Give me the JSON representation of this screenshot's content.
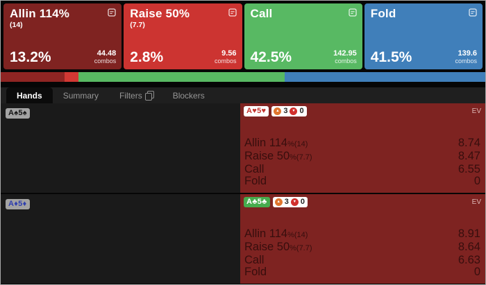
{
  "actions": [
    {
      "title": "Allin 114%",
      "subtitle": "(14)",
      "frequency": "13.2%",
      "combos": "44.48",
      "combos_label": "combos",
      "color": "#7f2321"
    },
    {
      "title": "Raise 50%",
      "subtitle": "(7.7)",
      "frequency": "2.8%",
      "combos": "9.56",
      "combos_label": "combos",
      "color": "#cc3431"
    },
    {
      "title": "Call",
      "subtitle": "",
      "frequency": "42.5%",
      "combos": "142.95",
      "combos_label": "combos",
      "color": "#58b963"
    },
    {
      "title": "Fold",
      "subtitle": "",
      "frequency": "41.5%",
      "combos": "139.6",
      "combos_label": "combos",
      "color": "#407fba"
    }
  ],
  "strategy_strip": {
    "segments": [
      {
        "action": "Allin 114%",
        "pct": 13.2,
        "color": "#8f2523"
      },
      {
        "action": "Raise 50%",
        "pct": 2.8,
        "color": "#d23833"
      },
      {
        "action": "Call",
        "pct": 42.5,
        "color": "#58b963"
      },
      {
        "action": "Fold",
        "pct": 41.5,
        "color": "#407fba"
      }
    ]
  },
  "tabs": [
    {
      "label": "Hands",
      "active": true
    },
    {
      "label": "Summary",
      "active": false
    },
    {
      "label": "Filters",
      "active": false,
      "icon": "copy-icon"
    },
    {
      "label": "Blockers",
      "active": false
    }
  ],
  "rows": [
    {
      "hand": "A♠5♠",
      "combo": "A♥5♥",
      "up_count": "3",
      "down_count": "0",
      "ev_header": "EV",
      "evs": [
        {
          "name": "Allin 114",
          "suffix": "%",
          "note": "(14)",
          "value": "8.74"
        },
        {
          "name": "Raise 50",
          "suffix": "%",
          "note": "(7.7)",
          "value": "8.47"
        },
        {
          "name": "Call",
          "suffix": "",
          "note": "",
          "value": "6.55"
        },
        {
          "name": "Fold",
          "suffix": "",
          "note": "",
          "value": "0"
        }
      ]
    },
    {
      "hand": "A♦5♦",
      "combo": "A♣5♣",
      "up_count": "3",
      "down_count": "0",
      "ev_header": "EV",
      "evs": [
        {
          "name": "Allin 114",
          "suffix": "%",
          "note": "(14)",
          "value": "8.91"
        },
        {
          "name": "Raise 50",
          "suffix": "%",
          "note": "(7.7)",
          "value": "8.64"
        },
        {
          "name": "Call",
          "suffix": "",
          "note": "",
          "value": "6.63"
        },
        {
          "name": "Fold",
          "suffix": "",
          "note": "",
          "value": "0"
        }
      ]
    }
  ],
  "icons": {
    "details": "details-icon",
    "copy": "copy-icon",
    "up_circle": {
      "glyph": "▲",
      "color": "#e0762f"
    },
    "down_circle": {
      "glyph": "▼",
      "color": "#d12f2c"
    }
  }
}
